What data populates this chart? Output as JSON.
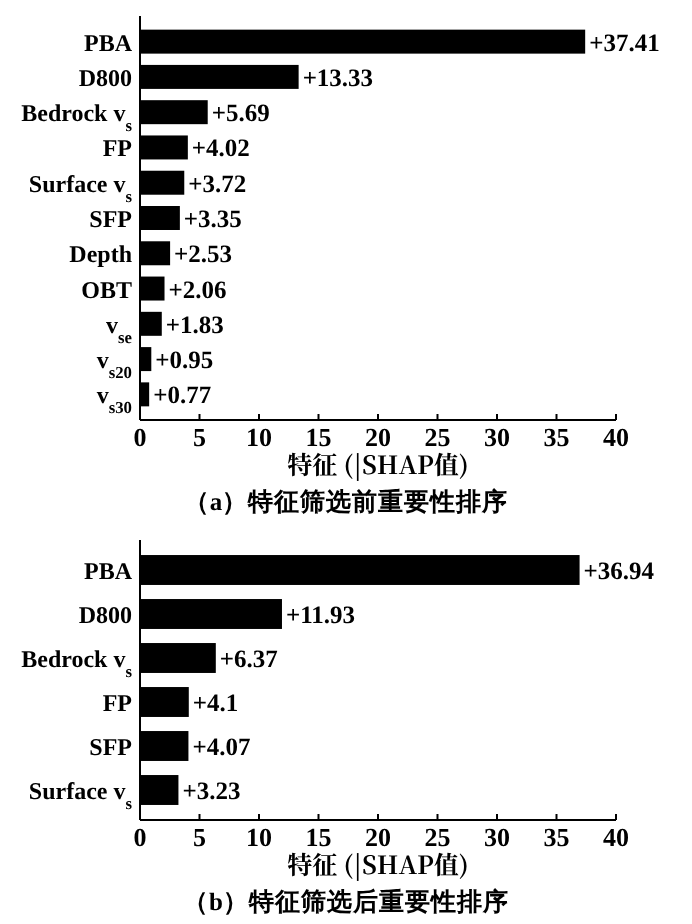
{
  "chart_data": [
    {
      "type": "bar",
      "orientation": "horizontal",
      "title": "（a）特征筛选前重要性排序",
      "xlabel": "特征 (|SHAP值)",
      "categories": [
        "PBA",
        "D800",
        "Bedrock v$_{s}$",
        "FP",
        "Surface v$_{s}$",
        "SFP",
        "Depth",
        "OBT",
        "v$_{se}$",
        "v$_{s20}$",
        "v$_{s30}$"
      ],
      "values": [
        37.41,
        13.33,
        5.69,
        4.02,
        3.72,
        3.35,
        2.53,
        2.06,
        1.83,
        0.95,
        0.77
      ],
      "value_labels": [
        "+37.41",
        "+13.33",
        "+5.69",
        "+4.02",
        "+3.72",
        "+3.35",
        "+2.53",
        "+2.06",
        "+1.83",
        "+0.95",
        "+0.77"
      ],
      "color": "#000000",
      "xlim": [
        0,
        40
      ],
      "xticks": [
        0,
        5,
        10,
        15,
        20,
        25,
        30,
        35,
        40
      ]
    },
    {
      "type": "bar",
      "orientation": "horizontal",
      "title": "（b）特征筛选后重要性排序",
      "xlabel": "特征 (|SHAP值)",
      "categories": [
        "PBA",
        "D800",
        "Bedrock v$_{s}$",
        "FP",
        "SFP",
        "Surface v$_{s}$"
      ],
      "values": [
        36.94,
        11.93,
        6.37,
        4.1,
        4.07,
        3.23
      ],
      "value_labels": [
        "+36.94",
        "+11.93",
        "+6.37",
        "+4.1",
        "+4.07",
        "+3.23"
      ],
      "color": "#000000",
      "xlim": [
        0,
        40
      ],
      "xticks": [
        0,
        5,
        10,
        15,
        20,
        25,
        30,
        35,
        40
      ]
    }
  ]
}
